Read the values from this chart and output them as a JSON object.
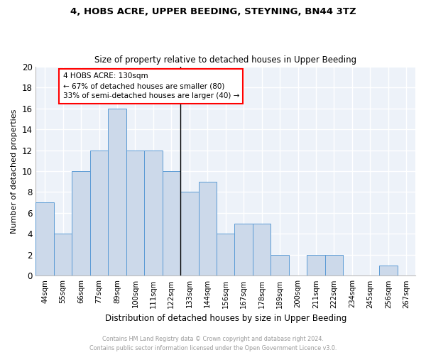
{
  "title1": "4, HOBS ACRE, UPPER BEEDING, STEYNING, BN44 3TZ",
  "title2": "Size of property relative to detached houses in Upper Beeding",
  "xlabel": "Distribution of detached houses by size in Upper Beeding",
  "ylabel": "Number of detached properties",
  "footer1": "Contains HM Land Registry data © Crown copyright and database right 2024.",
  "footer2": "Contains public sector information licensed under the Open Government Licence v3.0.",
  "categories": [
    "44sqm",
    "55sqm",
    "66sqm",
    "77sqm",
    "89sqm",
    "100sqm",
    "111sqm",
    "122sqm",
    "133sqm",
    "144sqm",
    "156sqm",
    "167sqm",
    "178sqm",
    "189sqm",
    "200sqm",
    "211sqm",
    "222sqm",
    "234sqm",
    "245sqm",
    "256sqm",
    "267sqm"
  ],
  "values": [
    7,
    4,
    10,
    12,
    16,
    12,
    12,
    10,
    8,
    9,
    4,
    5,
    5,
    2,
    0,
    2,
    2,
    0,
    0,
    1,
    0
  ],
  "bar_color": "#ccd9ea",
  "bar_edge_color": "#5b9bd5",
  "annotation_text": "4 HOBS ACRE: 130sqm\n← 67% of detached houses are smaller (80)\n33% of semi-detached houses are larger (40) →",
  "annotation_box_color": "white",
  "annotation_box_edge": "red",
  "vline_index": 8,
  "ylim": [
    0,
    20
  ],
  "yticks": [
    0,
    2,
    4,
    6,
    8,
    10,
    12,
    14,
    16,
    18,
    20
  ],
  "background_color": "#edf2f9",
  "grid_color": "white"
}
